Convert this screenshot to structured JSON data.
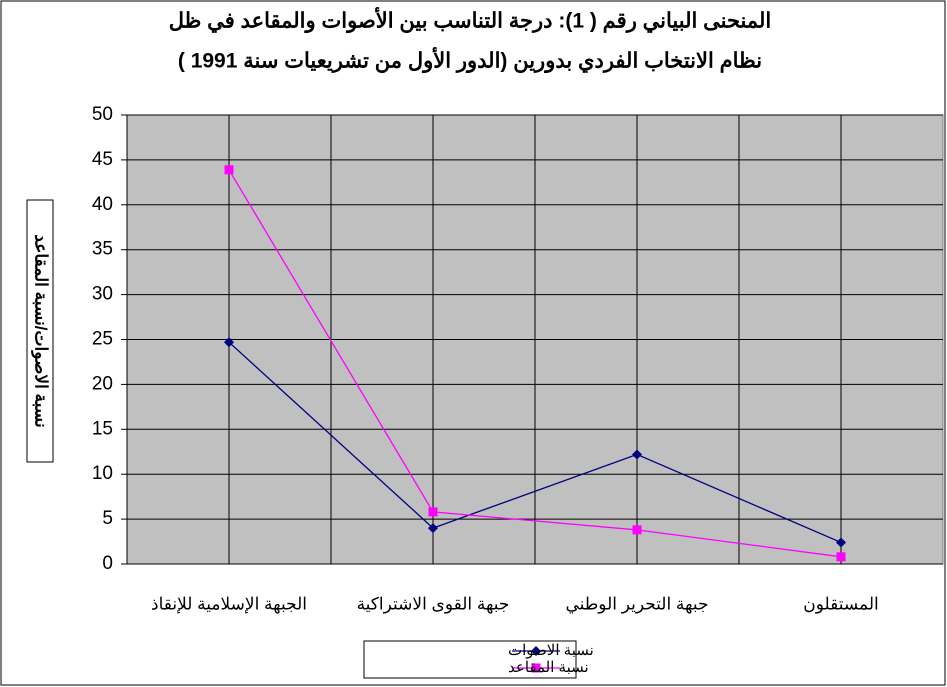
{
  "chart_data": {
    "type": "line",
    "title": [
      "المنحنى البياني رقم ( 1): درجة التناسب بين الأصوات والمقاعد في ظل",
      "نظام الانتخاب الفردي بدورين (الدور الأول من تشريعيات سنة 1991 )"
    ],
    "y_label": "نسبة الاصوات/نسبة المقاعد",
    "categories": [
      "الجبهة الإسلامية للإنقاذ",
      "جبهة القوى الاشتراكية",
      "جبهة التحرير الوطني",
      "المستقلون"
    ],
    "series": [
      {
        "name": "نسبة الاصوات",
        "color": "#000080",
        "marker": "diamond",
        "values": [
          24.7,
          4,
          12.2,
          2.4
        ]
      },
      {
        "name": "نسبة المقاعد",
        "color": "#ff00ff",
        "marker": "square",
        "values": [
          43.9,
          5.8,
          3.8,
          0.8
        ]
      }
    ],
    "ylim": [
      0,
      50
    ],
    "yticks": [
      0,
      5,
      10,
      15,
      20,
      25,
      30,
      35,
      40,
      45,
      50
    ],
    "grid": true,
    "legend": "bottom"
  }
}
